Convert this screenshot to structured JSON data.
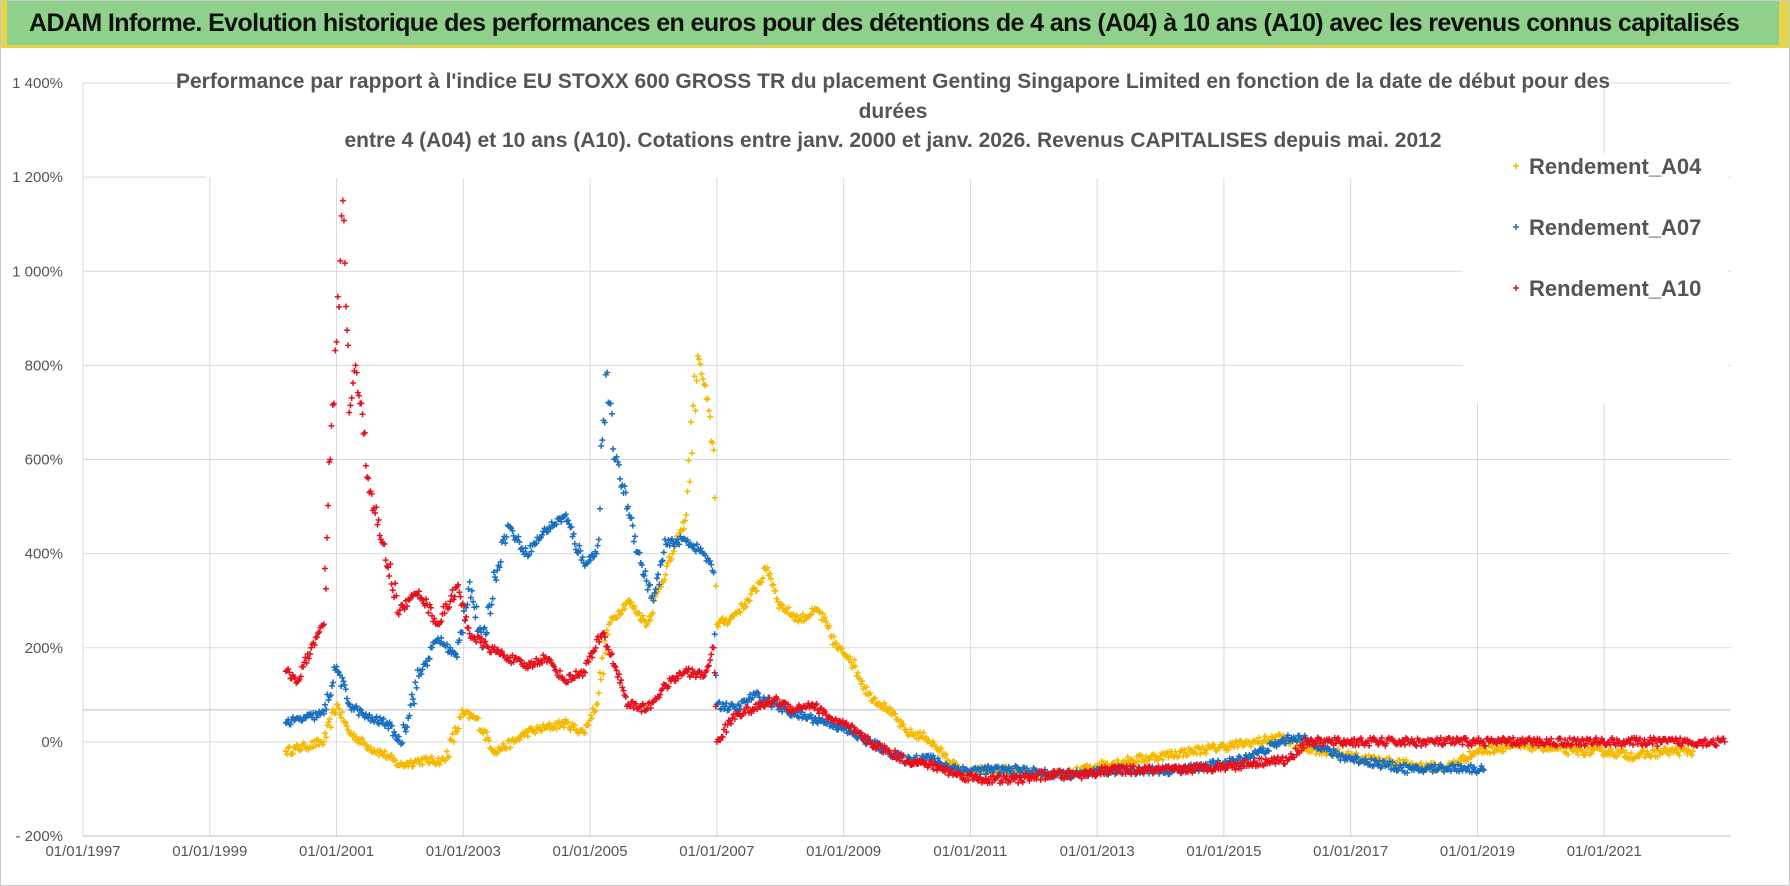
{
  "header": {
    "banner_text": "ADAM Informe. Evolution historique des performances en euros pour des détentions de 4 ans (A04) à 10 ans (A10) avec les revenus connus capitalisés"
  },
  "colors": {
    "banner_bg": "#8fd18a",
    "banner_border": "#e6d54a",
    "A04": "#f5b900",
    "A07": "#1a6fc0",
    "A10": "#e8101c",
    "grid": "#d9d9d9",
    "text": "#555555"
  },
  "chart_data": {
    "type": "scatter",
    "title_lines": [
      "Performance par rapport à l'indice EU STOXX 600 GROSS TR  du placement Genting Singapore Limited en fonction de la date de début pour des",
      "durées",
      "entre 4 (A04) et 10 ans (A10). Cotations entre janv. 2000 et janv. 2026. Revenus CAPITALISES depuis mai. 2012"
    ],
    "xlabel": "",
    "ylabel": "",
    "x_range": [
      1997.0,
      2023.0
    ],
    "x_ticks": [
      1997,
      1999,
      2001,
      2003,
      2005,
      2007,
      2009,
      2011,
      2013,
      2015,
      2017,
      2019,
      2021
    ],
    "x_tick_labels": [
      "01/01/1997",
      "01/01/1999",
      "01/01/2001",
      "01/01/2003",
      "01/01/2005",
      "01/01/2007",
      "01/01/2009",
      "01/01/2011",
      "01/01/2013",
      "01/01/2015",
      "01/01/2017",
      "01/01/2019",
      "01/01/2021"
    ],
    "ylim": [
      -200,
      1400
    ],
    "y_ticks": [
      -200,
      0,
      200,
      400,
      600,
      800,
      1000,
      1200,
      1400
    ],
    "y_tick_labels": [
      "- 200%",
      "0%",
      "200%",
      "400%",
      "600%",
      "800%",
      "1 000%",
      "1 200%",
      "1 400%"
    ],
    "legend_position": "top-right",
    "marker": "+",
    "series": [
      {
        "name": "Rendement_A04",
        "color_key": "A04",
        "x": [
          2000.2,
          2000.5,
          2000.8,
          2001.0,
          2001.2,
          2001.5,
          2001.8,
          2002.0,
          2002.3,
          2002.7,
          2003.0,
          2003.2,
          2003.5,
          2003.8,
          2004.0,
          2004.3,
          2004.6,
          2004.9,
          2005.1,
          2005.3,
          2005.6,
          2005.9,
          2006.1,
          2006.3,
          2006.5,
          2006.7,
          2006.8,
          2006.95,
          2007.0,
          2007.2,
          2007.5,
          2007.8,
          2008.0,
          2008.3,
          2008.6,
          2008.9,
          2009.1,
          2009.4,
          2009.7,
          2010.0,
          2010.3,
          2010.6,
          2010.9,
          2011.2,
          2011.6,
          2012.0,
          2012.5,
          2013.0,
          2013.5,
          2014.0,
          2014.5,
          2015.0,
          2015.5,
          2015.9,
          2016.2,
          2016.6,
          2017.0,
          2017.5,
          2018.0,
          2018.5,
          2019.0,
          2019.5,
          2020.0,
          2020.5,
          2021.0,
          2021.5,
          2022.0,
          2022.4
        ],
        "values": [
          -20,
          -10,
          0,
          80,
          20,
          -10,
          -30,
          -50,
          -40,
          -40,
          60,
          50,
          -20,
          0,
          20,
          30,
          40,
          20,
          80,
          250,
          300,
          250,
          330,
          400,
          470,
          820,
          760,
          620,
          250,
          260,
          300,
          370,
          290,
          260,
          280,
          200,
          180,
          100,
          70,
          20,
          10,
          -30,
          -70,
          -60,
          -60,
          -70,
          -70,
          -50,
          -40,
          -30,
          -20,
          -10,
          0,
          10,
          -10,
          -20,
          -30,
          -40,
          -50,
          -55,
          -20,
          -10,
          -10,
          -20,
          -20,
          -30,
          -20,
          -20
        ]
      },
      {
        "name": "Rendement_A07",
        "color_key": "A07",
        "x": [
          2000.2,
          2000.5,
          2000.8,
          2001.0,
          2001.2,
          2001.5,
          2001.8,
          2002.0,
          2002.3,
          2002.6,
          2002.9,
          2003.1,
          2003.3,
          2003.5,
          2003.7,
          2004.0,
          2004.3,
          2004.6,
          2004.9,
          2005.1,
          2005.25,
          2005.4,
          2005.6,
          2005.8,
          2006.0,
          2006.2,
          2006.5,
          2006.8,
          2006.95,
          2007.0,
          2007.3,
          2007.6,
          2007.9,
          2008.2,
          2008.5,
          2008.8,
          2009.1,
          2009.4,
          2009.7,
          2010.0,
          2010.3,
          2010.6,
          2010.9,
          2011.3,
          2011.8,
          2012.3,
          2012.8,
          2013.3,
          2013.8,
          2014.3,
          2014.8,
          2015.2,
          2015.6,
          2015.9,
          2016.1,
          2016.4,
          2016.8,
          2017.2,
          2017.6,
          2018.0,
          2018.4,
          2018.8,
          2019.1
        ],
        "values": [
          40,
          50,
          60,
          160,
          80,
          50,
          40,
          0,
          140,
          220,
          180,
          340,
          200,
          350,
          460,
          400,
          450,
          480,
          380,
          400,
          780,
          600,
          500,
          380,
          300,
          420,
          430,
          400,
          360,
          80,
          70,
          100,
          80,
          60,
          50,
          40,
          20,
          0,
          -20,
          -40,
          -30,
          -50,
          -60,
          -60,
          -60,
          -70,
          -70,
          -60,
          -60,
          -60,
          -50,
          -40,
          -20,
          0,
          10,
          0,
          -30,
          -40,
          -50,
          -60,
          -55,
          -55,
          -60
        ]
      },
      {
        "name": "Rendement_A10",
        "color_key": "A10",
        "x": [
          2000.2,
          2000.4,
          2000.6,
          2000.8,
          2000.9,
          2001.0,
          2001.1,
          2001.2,
          2001.3,
          2001.5,
          2001.7,
          2002.0,
          2002.3,
          2002.6,
          2002.9,
          2003.1,
          2003.4,
          2003.7,
          2004.0,
          2004.3,
          2004.6,
          2004.9,
          2005.2,
          2005.4,
          2005.6,
          2005.9,
          2006.2,
          2006.5,
          2006.8,
          2006.95,
          2007.0,
          2007.3,
          2007.6,
          2007.9,
          2008.2,
          2008.5,
          2008.8,
          2009.1,
          2009.4,
          2009.7,
          2010.0,
          2010.4,
          2010.8,
          2011.2,
          2011.7,
          2012.2,
          2012.7,
          2013.2,
          2013.7,
          2014.2,
          2014.7,
          2015.2,
          2015.7,
          2016.0,
          2016.3,
          2017.0,
          2018.0,
          2019.0,
          2020.0,
          2021.0,
          2022.0,
          2022.9
        ],
        "values": [
          150,
          130,
          200,
          250,
          600,
          850,
          1150,
          700,
          800,
          560,
          430,
          280,
          320,
          250,
          330,
          230,
          200,
          180,
          160,
          180,
          130,
          150,
          230,
          160,
          80,
          70,
          120,
          150,
          140,
          200,
          0,
          60,
          70,
          90,
          70,
          80,
          50,
          30,
          0,
          -20,
          -40,
          -50,
          -70,
          -80,
          -80,
          -70,
          -70,
          -60,
          -60,
          -60,
          -55,
          -50,
          -40,
          -40,
          0,
          0,
          0,
          0,
          0,
          0,
          0,
          0
        ]
      }
    ]
  }
}
